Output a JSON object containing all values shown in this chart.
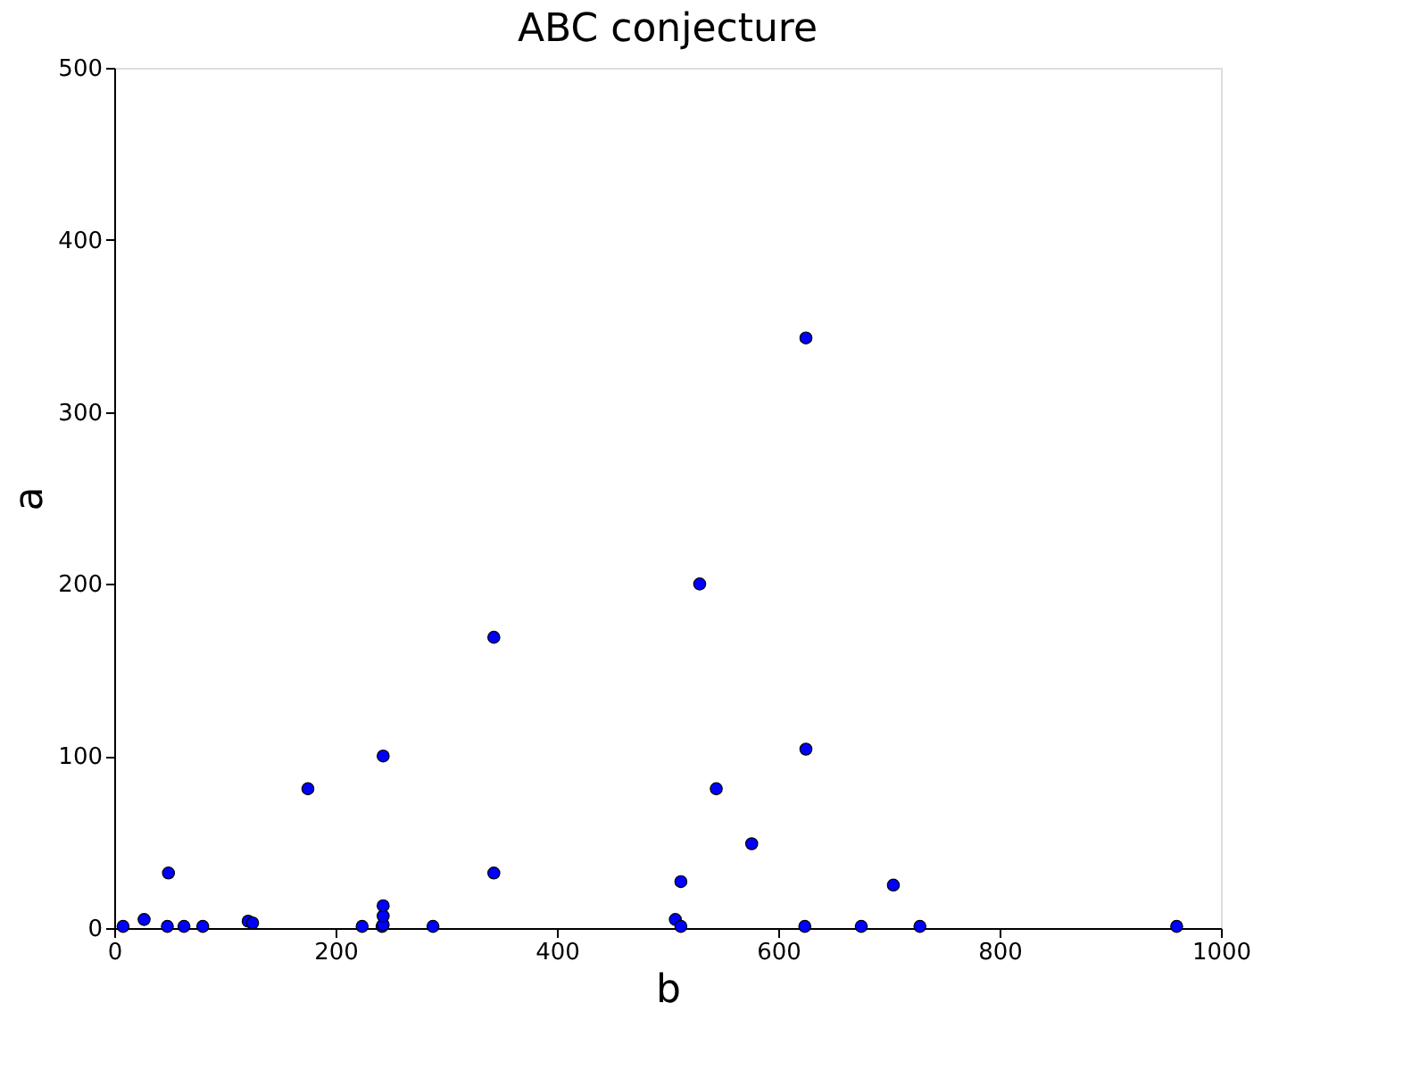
{
  "chart_data": {
    "type": "scatter",
    "title": "ABC conjecture",
    "xlabel": "b",
    "ylabel": "a",
    "x": [
      8,
      27,
      48,
      49,
      63,
      80,
      121,
      125,
      175,
      224,
      242,
      243,
      243,
      243,
      243,
      288,
      343,
      343,
      507,
      512,
      512,
      529,
      544,
      576,
      624,
      625,
      625,
      675,
      704,
      728,
      960
    ],
    "series": [
      {
        "color": "#0000ff",
        "values": [
          1,
          5,
          1,
          32,
          1,
          1,
          4,
          3,
          81,
          1,
          1,
          2,
          7,
          13,
          100,
          1,
          169,
          32,
          5,
          1,
          27,
          200,
          81,
          49,
          1,
          104,
          343,
          1,
          25,
          1,
          1
        ]
      }
    ],
    "xlim": [
      0,
      1000
    ],
    "xticks": [
      0,
      200,
      400,
      600,
      800,
      1000
    ],
    "ylim": [
      0,
      500
    ],
    "yticks": [
      0,
      100,
      200,
      300,
      400,
      500
    ],
    "grid": false,
    "marker": "circle"
  }
}
